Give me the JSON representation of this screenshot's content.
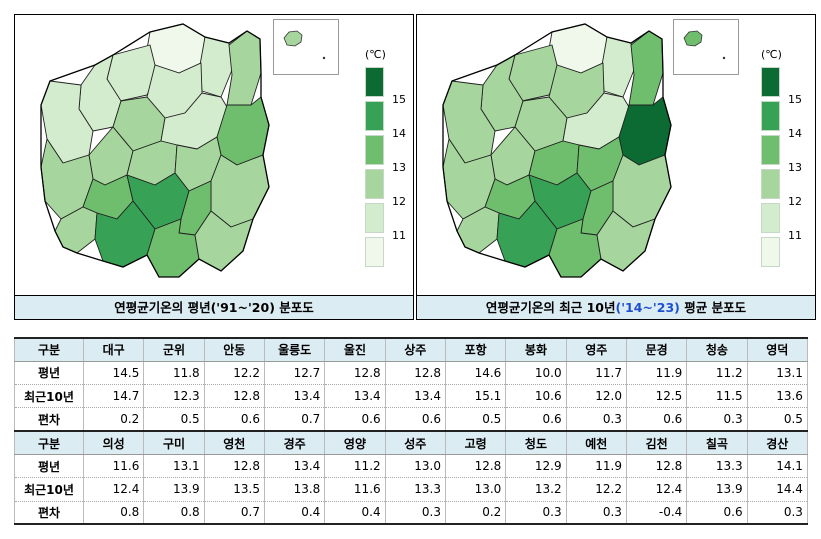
{
  "maps": [
    {
      "title_main": "연평균기온의 평년('91~'20) 분포도",
      "title_blue": "",
      "title_tail": ""
    },
    {
      "title_main": "연평균기온의 최근 10년",
      "title_blue": "('14~'23)",
      "title_tail": " 평균 분포도"
    }
  ],
  "legend": {
    "unit": "(℃)",
    "ticks": [
      "15",
      "14",
      "13",
      "12",
      "11"
    ],
    "colors": [
      "#0b6b32",
      "#37a256",
      "#6fbe6e",
      "#a6d69d",
      "#d4ecce",
      "#eff8ea"
    ]
  },
  "table": {
    "header_label": "구분",
    "row_labels": [
      "평년",
      "최근10년",
      "편차"
    ],
    "groups": [
      {
        "regions": [
          "대구",
          "군위",
          "안동",
          "울릉도",
          "울진",
          "상주",
          "포항",
          "봉화",
          "영주",
          "문경",
          "청송",
          "영덕"
        ],
        "normal": [
          "14.5",
          "11.8",
          "12.2",
          "12.7",
          "12.8",
          "12.8",
          "14.6",
          "10.0",
          "11.7",
          "11.9",
          "11.2",
          "13.1"
        ],
        "recent": [
          "14.7",
          "12.3",
          "12.8",
          "13.4",
          "13.4",
          "13.4",
          "15.1",
          "10.6",
          "12.0",
          "12.5",
          "11.5",
          "13.6"
        ],
        "diff": [
          "0.2",
          "0.5",
          "0.6",
          "0.7",
          "0.6",
          "0.6",
          "0.5",
          "0.6",
          "0.3",
          "0.6",
          "0.3",
          "0.5"
        ]
      },
      {
        "regions": [
          "의성",
          "구미",
          "영천",
          "경주",
          "영양",
          "성주",
          "고령",
          "청도",
          "예천",
          "김천",
          "칠곡",
          "경산"
        ],
        "normal": [
          "11.6",
          "13.1",
          "12.8",
          "13.4",
          "11.2",
          "13.0",
          "12.8",
          "12.9",
          "11.9",
          "12.8",
          "13.3",
          "14.1"
        ],
        "recent": [
          "12.4",
          "13.9",
          "13.5",
          "13.8",
          "11.6",
          "13.3",
          "13.0",
          "13.2",
          "12.2",
          "12.4",
          "13.9",
          "14.4"
        ],
        "diff": [
          "0.8",
          "0.8",
          "0.7",
          "0.4",
          "0.4",
          "0.3",
          "0.2",
          "0.3",
          "0.3",
          "-0.4",
          "0.6",
          "0.3"
        ]
      }
    ]
  }
}
